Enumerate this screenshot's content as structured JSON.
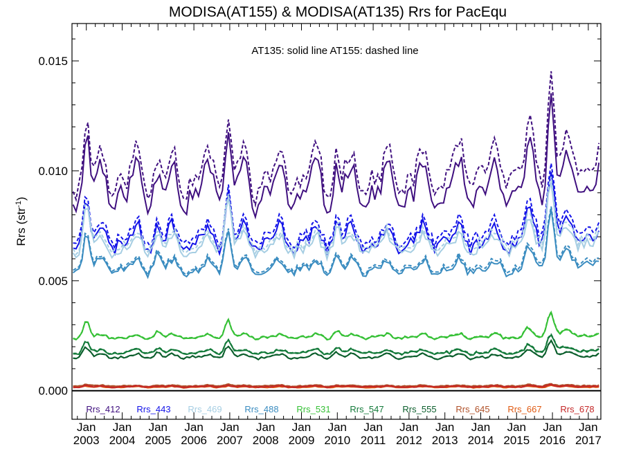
{
  "chart_data": {
    "type": "line",
    "title": "MODISA(AT155) & MODISA(AT135)  Rrs for PacEqu",
    "annotation": "AT135: solid line   AT155: dashed line",
    "ylabel": "Rrs (str",
    "ylabel_sup": "-1",
    "ylabel_close": ")",
    "ylim": [
      -0.0013,
      0.0167
    ],
    "xlim": [
      2002.6,
      2017.35
    ],
    "y_ticks": [
      "0.000",
      "0.005",
      "0.010",
      "0.015"
    ],
    "y_tick_values": [
      0,
      0.005,
      0.01,
      0.015
    ],
    "x_tick_month": "Jan",
    "x_tick_years": [
      "2003",
      "2004",
      "2005",
      "2006",
      "2007",
      "2008",
      "2009",
      "2010",
      "2011",
      "2012",
      "2013",
      "2014",
      "2015",
      "2016",
      "2017"
    ],
    "legend_placement": "bottom-inside",
    "styles": {
      "AT135": "solid",
      "AT155": "dashed"
    },
    "series": [
      {
        "name": "Rrs_412",
        "color": "#3f0f7f",
        "base": 0.0092,
        "amp": 0.00085,
        "noise": 0.00042,
        "seed": 11,
        "at155_offset": 0.00065
      },
      {
        "name": "Rrs_443",
        "color": "#1212e8",
        "base": 0.0069,
        "amp": 0.00045,
        "noise": 0.00028,
        "seed": 23,
        "at155_offset": 0.00025
      },
      {
        "name": "Rrs_469",
        "color": "#a6cee3",
        "base": 0.0066,
        "amp": 0.00035,
        "noise": 0.00024,
        "seed": 37,
        "at155_offset": 0.00018
      },
      {
        "name": "Rrs_488",
        "color": "#3a8cc0",
        "base": 0.0056,
        "amp": 0.00025,
        "noise": 0.00018,
        "seed": 41,
        "at155_offset": 0.0001
      },
      {
        "name": "Rrs_531",
        "color": "#35c035",
        "base": 0.00245,
        "amp": 8e-05,
        "noise": 6e-05,
        "seed": 53,
        "at155_offset": 2e-05
      },
      {
        "name": "Rrs_547",
        "color": "#137a3a",
        "base": 0.00175,
        "amp": 8e-05,
        "noise": 6e-05,
        "seed": 61,
        "at155_offset": 2e-05
      },
      {
        "name": "Rrs_555",
        "color": "#0b5e2c",
        "base": 0.00155,
        "amp": 8e-05,
        "noise": 6e-05,
        "seed": 71,
        "at155_offset": 1e-05
      },
      {
        "name": "Rrs_645",
        "color": "#b0522a",
        "base": 0.00022,
        "amp": 2e-05,
        "noise": 2e-05,
        "seed": 83,
        "at155_offset": 1e-05
      },
      {
        "name": "Rrs_667",
        "color": "#e05a12",
        "base": 0.00016,
        "amp": 2e-05,
        "noise": 2e-05,
        "seed": 89,
        "at155_offset": 1e-05
      },
      {
        "name": "Rrs_678",
        "color": "#c42727",
        "base": 0.00018,
        "amp": 2e-05,
        "noise": 2e-05,
        "seed": 97,
        "at155_offset": 1e-05
      }
    ],
    "events": [
      {
        "date": 2003.0,
        "boost": 0.0028
      },
      {
        "date": 2005.0,
        "boost": 0.0011
      },
      {
        "date": 2006.95,
        "boost": 0.003
      },
      {
        "date": 2010.0,
        "boost": 0.0012
      },
      {
        "date": 2015.3,
        "boost": 0.0012
      },
      {
        "date": 2015.95,
        "boost": 0.004
      }
    ]
  }
}
